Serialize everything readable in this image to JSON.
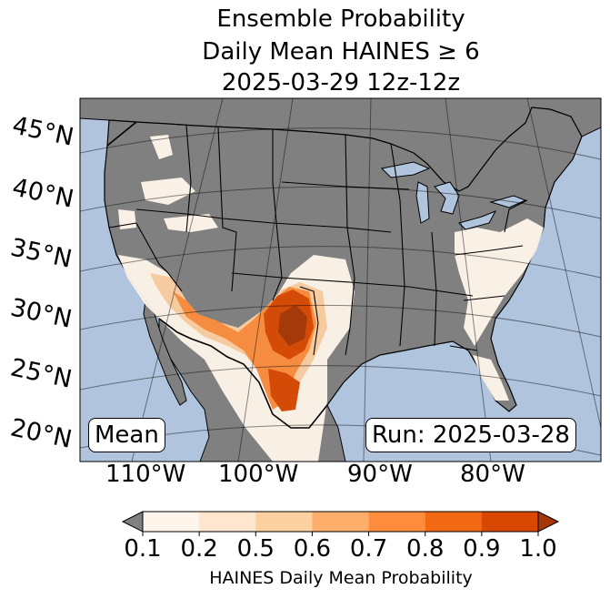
{
  "title": {
    "line1": "Ensemble Probability",
    "line2": "Daily Mean HAINES ≥ 6",
    "line3": "2025-03-29 12z-12z"
  },
  "latitude_labels": [
    "45°N",
    "40°N",
    "35°N",
    "30°N",
    "25°N",
    "20°N"
  ],
  "longitude_labels": [
    "110°W",
    "100°W",
    "90°W",
    "80°W"
  ],
  "mean_label": "Mean",
  "run_label": "Run: 2025-03-28",
  "colorbar": {
    "label": "HAINES Daily Mean Probability",
    "ticks": [
      "0.1",
      "0.2",
      "0.5",
      "0.6",
      "0.7",
      "0.8",
      "0.9",
      "1.0"
    ],
    "colors": [
      "#808080",
      "#fff5eb",
      "#fee6ce",
      "#fdd0a2",
      "#fdae6b",
      "#fd8d3c",
      "#f16913",
      "#d94801",
      "#a63603"
    ]
  },
  "colors": {
    "ocean": "#b0c4de",
    "land": "#808080",
    "borders": "#000000"
  }
}
